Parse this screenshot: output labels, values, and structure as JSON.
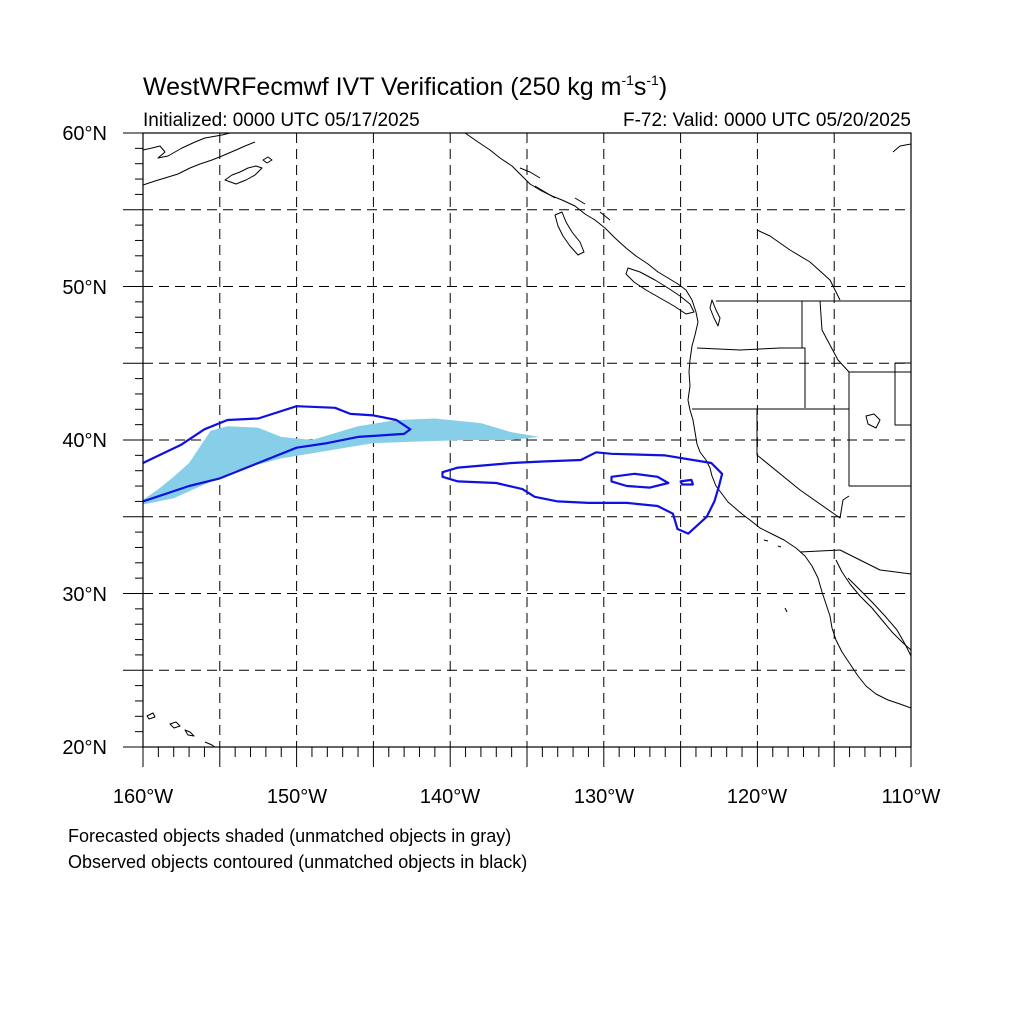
{
  "title": {
    "model": "WestWRFecmwf",
    "product": "IVT Verification",
    "threshold": "250",
    "units_base_kg": "kg",
    "units_m": "m",
    "units_m_exp": "-1",
    "units_s": "s",
    "units_s_exp": "-1"
  },
  "subtitle": {
    "initialized": "Initialized: 0000 UTC 05/17/2025",
    "valid": "F-72: Valid: 0000 UTC 05/20/2025"
  },
  "map": {
    "lat_range": [
      20,
      60
    ],
    "lon_range": [
      -160,
      -110
    ],
    "grid_spacing_deg": 5,
    "lat_labels": [
      "60°N",
      "50°N",
      "40°N",
      "30°N",
      "20°N"
    ],
    "lon_labels": [
      "160°W",
      "150°W",
      "140°W",
      "130°W",
      "120°W",
      "110°W"
    ],
    "colors": {
      "forecast_fill": "#87cfe8",
      "observed_contour": "#1010e0",
      "coastline": "#000000",
      "grid": "#000000"
    },
    "forecast_objects": [
      {
        "matched": true,
        "outline_lonlat": [
          [
            -160,
            36.1
          ],
          [
            -159,
            36.8
          ],
          [
            -158,
            37.6
          ],
          [
            -157,
            38.5
          ],
          [
            -156.4,
            39.4
          ],
          [
            -155.6,
            40.6
          ],
          [
            -154.5,
            40.9
          ],
          [
            -152.5,
            40.8
          ],
          [
            -151,
            40.2
          ],
          [
            -149,
            40
          ],
          [
            -146,
            40.9
          ],
          [
            -143.5,
            41.3
          ],
          [
            -141,
            41.4
          ],
          [
            -138,
            41.1
          ],
          [
            -136,
            40.5
          ],
          [
            -134.2,
            40.2
          ],
          [
            -136,
            40
          ],
          [
            -139,
            40
          ],
          [
            -142,
            39.9
          ],
          [
            -145,
            39.8
          ],
          [
            -148,
            39.3
          ],
          [
            -151,
            38.8
          ],
          [
            -154,
            38
          ],
          [
            -156,
            37.1
          ],
          [
            -158,
            36.2
          ],
          [
            -160,
            35.8
          ]
        ]
      }
    ],
    "observed_objects": [
      {
        "matched": true,
        "outline_lonlat": [
          [
            -160,
            38.5
          ],
          [
            -157.5,
            39.7
          ],
          [
            -156,
            40.7
          ],
          [
            -154.5,
            41.3
          ],
          [
            -152.5,
            41.4
          ],
          [
            -150,
            42.2
          ],
          [
            -147.5,
            42.1
          ],
          [
            -146.5,
            41.7
          ],
          [
            -145,
            41.6
          ],
          [
            -143.5,
            41.3
          ],
          [
            -142.6,
            40.7
          ],
          [
            -143,
            40.4
          ],
          [
            -146,
            40.2
          ],
          [
            -148,
            39.8
          ],
          [
            -150,
            39.5
          ],
          [
            -152.5,
            38.5
          ],
          [
            -155,
            37.5
          ],
          [
            -157,
            37
          ],
          [
            -160,
            36
          ]
        ]
      },
      {
        "matched": true,
        "outline_lonlat": [
          [
            -140.5,
            37.9
          ],
          [
            -139.5,
            38.2
          ],
          [
            -136,
            38.5
          ],
          [
            -134,
            38.6
          ],
          [
            -131.5,
            38.7
          ],
          [
            -130.5,
            39.2
          ],
          [
            -129.5,
            39.1
          ],
          [
            -126,
            39
          ],
          [
            -123,
            38.5
          ],
          [
            -122.3,
            37.8
          ],
          [
            -122.5,
            37
          ],
          [
            -122.8,
            36
          ],
          [
            -123.3,
            35
          ],
          [
            -124.5,
            33.9
          ],
          [
            -125.2,
            34.2
          ],
          [
            -125.5,
            35.2
          ],
          [
            -126.5,
            35.7
          ],
          [
            -128.5,
            35.9
          ],
          [
            -131,
            35.9
          ],
          [
            -133,
            36
          ],
          [
            -134.5,
            36.3
          ],
          [
            -135.3,
            36.8
          ],
          [
            -137,
            37.2
          ],
          [
            -139.5,
            37.3
          ],
          [
            -140.5,
            37.6
          ]
        ],
        "inner_rings": [
          [
            [
              -129.5,
              37.6
            ],
            [
              -128,
              37.8
            ],
            [
              -126.5,
              37.6
            ],
            [
              -125.8,
              37.2
            ],
            [
              -127,
              36.9
            ],
            [
              -128.5,
              37
            ],
            [
              -129.5,
              37.3
            ]
          ],
          [
            [
              -125,
              37.3
            ],
            [
              -124.3,
              37.4
            ],
            [
              -124.2,
              37.1
            ],
            [
              -124.9,
              37.1
            ]
          ]
        ]
      }
    ]
  },
  "notes": {
    "line1": "Forecasted objects shaded (unmatched objects in gray)",
    "line2": "Observed objects contoured (unmatched objects in black)"
  }
}
